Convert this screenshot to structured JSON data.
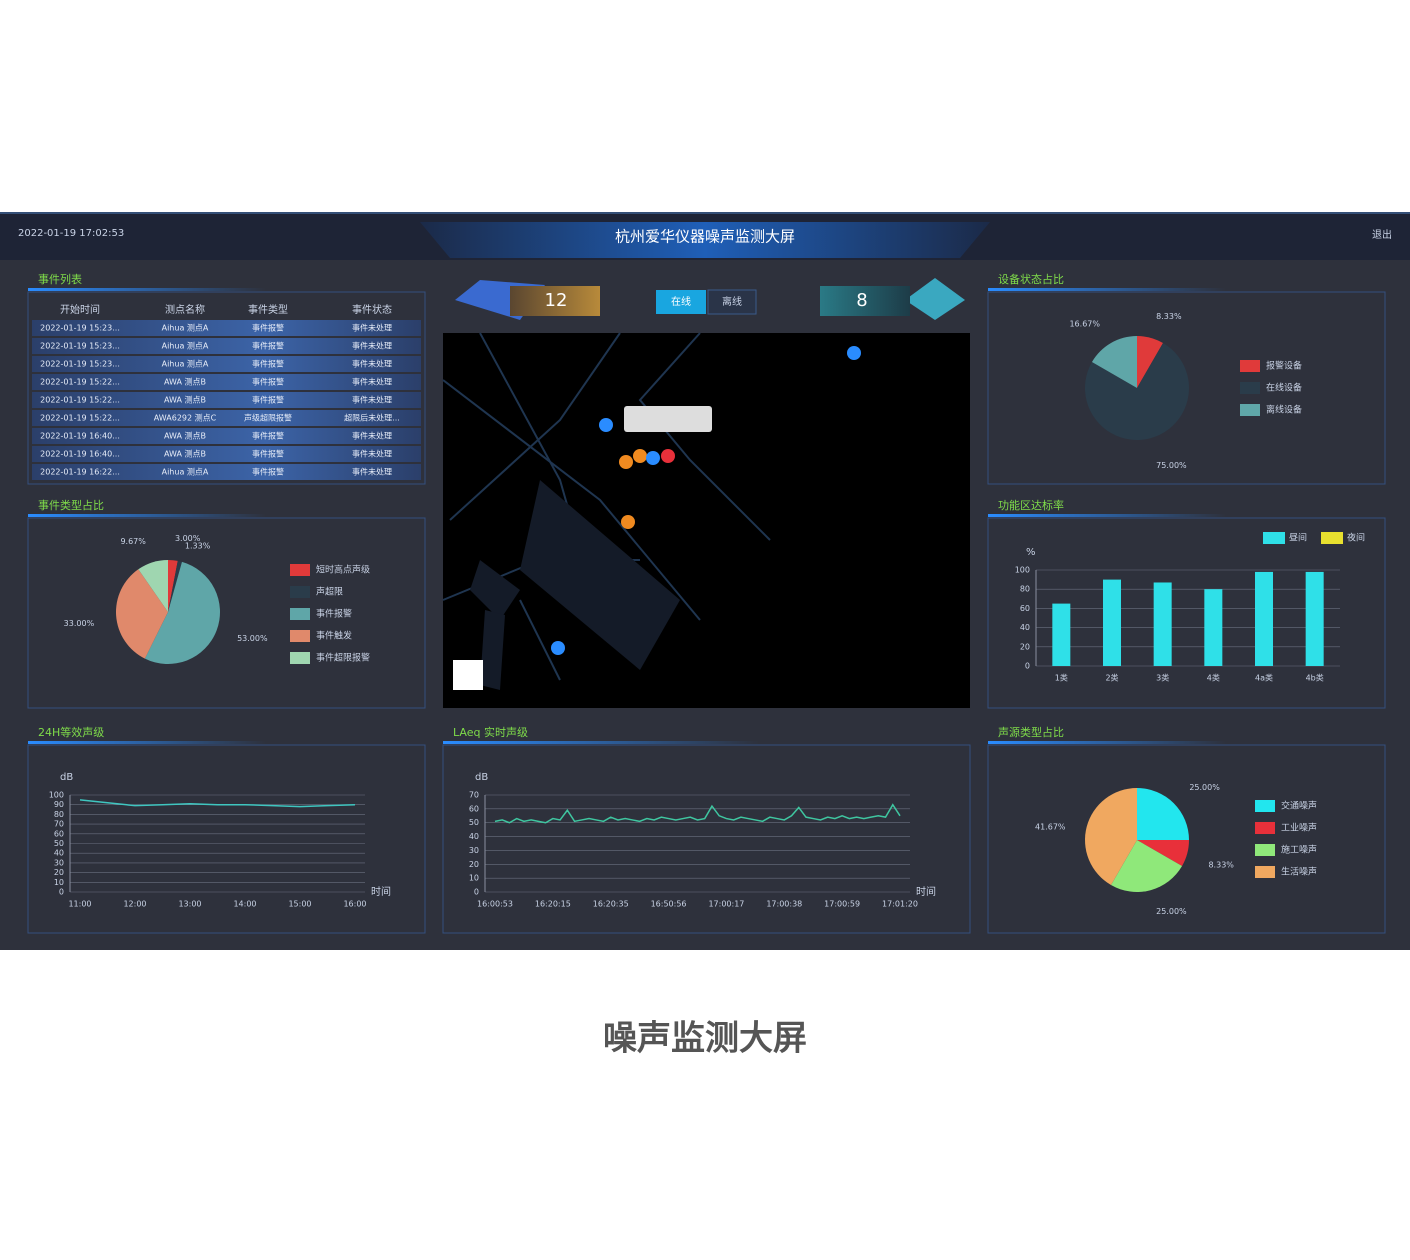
{
  "header": {
    "date": "2022-01-19 17:02:53",
    "title": "杭州爱华仪器噪声监测大屏",
    "exit": "退出"
  },
  "caption": "噪声监测大屏",
  "stats": {
    "left_value": 12,
    "right_value": 8,
    "buttons": [
      "在线",
      "离线"
    ]
  },
  "table": {
    "title": "事件列表",
    "columns": [
      "开始时间",
      "测点名称",
      "事件类型",
      "事件状态"
    ],
    "rows": [
      [
        "2022-01-19 15:23...",
        "Aihua 测点A",
        "事件报警",
        "事件未处理"
      ],
      [
        "2022-01-19 15:23...",
        "Aihua 测点A",
        "事件报警",
        "事件未处理"
      ],
      [
        "2022-01-19 15:23...",
        "Aihua 测点A",
        "事件报警",
        "事件未处理"
      ],
      [
        "2022-01-19 15:22...",
        "AWA 测点B",
        "事件报警",
        "事件未处理"
      ],
      [
        "2022-01-19 15:22...",
        "AWA 测点B",
        "事件报警",
        "事件未处理"
      ],
      [
        "2022-01-19 15:22...",
        "AWA6292 测点C",
        "声级超限报警",
        "超限后未处理..."
      ],
      [
        "2022-01-19 16:40...",
        "AWA 测点B",
        "事件报警",
        "事件未处理"
      ],
      [
        "2022-01-19 16:40...",
        "AWA 测点B",
        "事件报警",
        "事件未处理"
      ],
      [
        "2022-01-19 16:22...",
        "Aihua 测点A",
        "事件报警",
        "事件未处理"
      ]
    ]
  },
  "chart_data": [
    {
      "type": "pie",
      "title": "事件类型占比",
      "categories": [
        "短时高点声级",
        "声超限",
        "事件报警",
        "事件触发",
        "事件超限报警"
      ],
      "values": [
        3.0,
        1.33,
        53.0,
        33.0,
        9.67
      ],
      "value_labels": [
        "3.00%",
        "1.33%",
        "53.00%",
        "33.00%",
        "9.67%"
      ],
      "colors": [
        "#e03a3a",
        "#2a3c4a",
        "#5fa6a8",
        "#e0896b",
        "#9fd6b0"
      ]
    },
    {
      "type": "bar",
      "title": "功能区达标率",
      "ylabel": "%",
      "categories": [
        "1类",
        "2类",
        "3类",
        "4类",
        "4a类",
        "4b类"
      ],
      "series": [
        {
          "name": "昼间",
          "color": "#2fe0e8",
          "values": [
            65,
            90,
            87,
            80,
            98,
            98
          ]
        },
        {
          "name": "夜间",
          "color": "#e8e02f",
          "values": [
            null,
            null,
            null,
            null,
            null,
            null
          ]
        }
      ],
      "ylim": [
        0,
        100
      ],
      "yticks": [
        0,
        20,
        40,
        60,
        80,
        100
      ],
      "grid": true
    },
    {
      "type": "line",
      "title": "24H等效声级",
      "ylabel": "dB",
      "xlabel": "时间",
      "categories": [
        "11:00",
        null,
        "12:00",
        null,
        "13:00",
        null,
        "14:00",
        null,
        "15:00",
        null,
        "16:00"
      ],
      "series": [
        {
          "name": "LAeq",
          "color": "#3fc6c0",
          "values": [
            95,
            92,
            89,
            90,
            91,
            90,
            90,
            89,
            88,
            89,
            90
          ]
        }
      ],
      "ylim": [
        0,
        100
      ],
      "yticks": [
        0,
        10,
        20,
        30,
        40,
        50,
        60,
        70,
        80,
        90,
        100
      ],
      "grid": true
    },
    {
      "type": "line",
      "title": "LAeq 实时声级",
      "ylabel": "dB",
      "xlabel": "时间",
      "categories": [
        "16:00:53",
        null,
        null,
        null,
        null,
        null,
        null,
        null,
        "16:20:15",
        null,
        null,
        null,
        null,
        null,
        null,
        null,
        "16:20:35",
        null,
        null,
        null,
        null,
        null,
        null,
        null,
        "16:50:56",
        null,
        null,
        null,
        null,
        null,
        null,
        null,
        "17:00:17",
        null,
        null,
        null,
        null,
        null,
        null,
        null,
        "17:00:38",
        null,
        null,
        null,
        null,
        null,
        null,
        null,
        "17:00:59",
        null,
        null,
        null,
        null,
        null,
        null,
        null,
        "17:01:20"
      ],
      "series": [
        {
          "name": "LAeq",
          "color": "#3fc6a0",
          "values": [
            51,
            52,
            50,
            53,
            51,
            52,
            51,
            50,
            53,
            52,
            59,
            51,
            52,
            53,
            52,
            51,
            54,
            52,
            53,
            52,
            51,
            53,
            52,
            54,
            53,
            52,
            53,
            54,
            52,
            53,
            62,
            55,
            53,
            52,
            54,
            53,
            52,
            51,
            54,
            53,
            52,
            55,
            61,
            54,
            53,
            52,
            54,
            53,
            55,
            53,
            54,
            53,
            54,
            55,
            54,
            63,
            55
          ]
        }
      ],
      "ylim": [
        0,
        70
      ],
      "yticks": [
        0,
        10,
        20,
        30,
        40,
        50,
        60,
        70
      ],
      "grid": true
    },
    {
      "type": "pie",
      "title": "设备状态占比",
      "categories": [
        "报警设备",
        "在线设备",
        "离线设备"
      ],
      "values": [
        8.33,
        75.0,
        16.67
      ],
      "value_labels": [
        "8.33%",
        "75.00%",
        "16.67%"
      ],
      "colors": [
        "#e03a3a",
        "#2a3c4a",
        "#5fa6a8"
      ]
    },
    {
      "type": "pie",
      "title": "声源类型占比",
      "categories": [
        "交通噪声",
        "工业噪声",
        "施工噪声",
        "生活噪声"
      ],
      "values": [
        25.0,
        8.33,
        25.0,
        41.67
      ],
      "value_labels": [
        "25.00%",
        "8.33%",
        "25.00%",
        "41.67%"
      ],
      "colors": [
        "#22e6ee",
        "#e8303a",
        "#8fe87a",
        "#f0a860"
      ]
    }
  ]
}
